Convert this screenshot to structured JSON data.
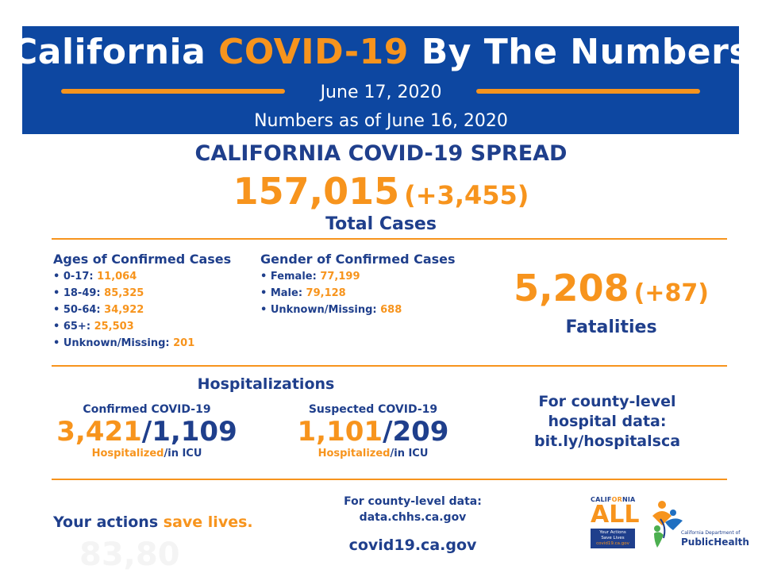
{
  "header": {
    "title_pre": "California",
    "title_highlight": "COVID-19",
    "title_post": "By The Numbers",
    "date": "June 17, 2020",
    "as_of": "Numbers as of June 16, 2020"
  },
  "spread": {
    "title": "CALIFORNIA COVID-19 SPREAD",
    "total": "157,015",
    "delta": "(+3,455)",
    "label": "Total Cases"
  },
  "ages": {
    "title": "Ages of Confirmed Cases",
    "items": [
      {
        "label": "• 0-17:",
        "value": "11,064"
      },
      {
        "label": "• 18-49:",
        "value": "85,325"
      },
      {
        "label": "• 50-64:",
        "value": "34,922"
      },
      {
        "label": "• 65+:",
        "value": "25,503"
      },
      {
        "label": "• Unknown/Missing:",
        "value": "201"
      }
    ]
  },
  "gender": {
    "title": "Gender of Confirmed Cases",
    "items": [
      {
        "label": "• Female:",
        "value": "77,199"
      },
      {
        "label": "• Male:",
        "value": "79,128"
      },
      {
        "label": "• Unknown/Missing:",
        "value": "688"
      }
    ]
  },
  "fatalities": {
    "total": "5,208",
    "delta": "(+87)",
    "label": "Fatalities"
  },
  "hospitalizations": {
    "title": "Hospitalizations",
    "confirmed": {
      "label": "Confirmed COVID-19",
      "hospitalized": "3,421",
      "slash": "/",
      "icu": "1,109",
      "caption_hosp": "Hospitalized",
      "caption_icu": "/in ICU"
    },
    "suspected": {
      "label": "Suspected COVID-19",
      "hospitalized": "1,101",
      "slash": "/",
      "icu": "209",
      "caption_hosp": "Hospitalized",
      "caption_icu": "/in ICU"
    }
  },
  "county_hospital": {
    "line1": "For county-level",
    "line2": "hospital data:",
    "line3": "bit.ly/hospitalsca"
  },
  "footer": {
    "tag_pre": "Your actions",
    "tag_highlight": "save lives.",
    "ghost_text": "83,80",
    "county_data_line1": "For county-level data:",
    "county_data_line2": "data.chhs.ca.gov",
    "url": "covid19.ca.gov"
  },
  "logos": {
    "ca_all": {
      "top_pre": "CALIF",
      "top_highlight": "OR",
      "top_post": "NIA",
      "big": "ALL",
      "box_line1": "Your Actions",
      "box_line2": "Save Lives",
      "box_line3": "covid19.ca.gov"
    },
    "cdph": {
      "line1": "California Department of",
      "line2": "PublicHealth"
    }
  },
  "colors": {
    "banner_blue": "#0d47a1",
    "navy_text": "#1f3f8c",
    "orange": "#f7941d"
  }
}
